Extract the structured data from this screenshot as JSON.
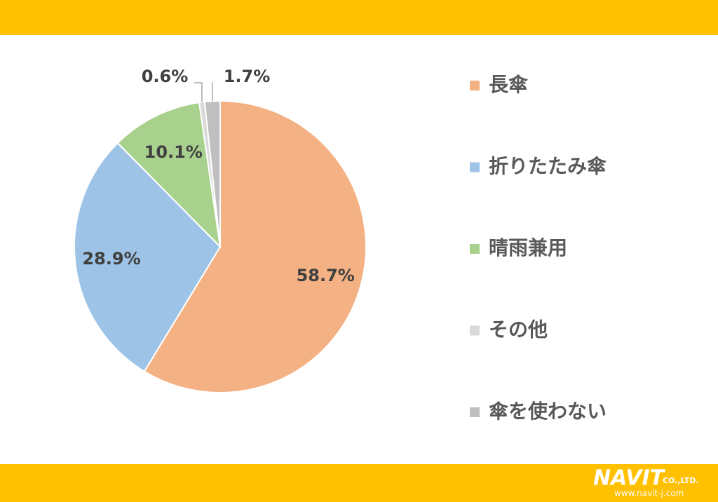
{
  "chart_data": {
    "type": "pie",
    "categories": [
      "長傘",
      "折りたたみ傘",
      "晴雨兼用",
      "その他",
      "傘を使わない"
    ],
    "values": [
      58.7,
      28.9,
      10.1,
      0.6,
      1.7
    ],
    "value_labels": [
      "58.7%",
      "28.9%",
      "10.1%",
      "0.6%",
      "1.7%"
    ],
    "colors": [
      "#f4b183",
      "#9dc3e6",
      "#a9d18e",
      "#d9d9d9",
      "#bfbfbf"
    ],
    "legend": "right"
  },
  "logo": {
    "name": "NAVIT",
    "suffix": "CO.,LTD.",
    "url": "www.navit-j.com"
  }
}
